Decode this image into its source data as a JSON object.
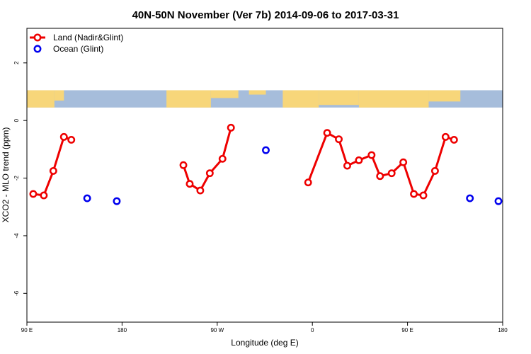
{
  "chart_data": {
    "type": "scatter",
    "title": "40N-50N November (Ver 7b)   2014-09-06 to 2017-03-31",
    "xlabel": "Longitude (deg E)",
    "ylabel": "XCO2 - MLO trend (ppm)",
    "xlim": [
      90,
      540
    ],
    "ylim": [
      -7,
      3.2
    ],
    "xticks": [
      {
        "value": 90,
        "label": "90 E"
      },
      {
        "value": 180,
        "label": "180"
      },
      {
        "value": 270,
        "label": "90 W"
      },
      {
        "value": 360,
        "label": "0"
      },
      {
        "value": 450,
        "label": "90 E"
      },
      {
        "value": 540,
        "label": "180"
      }
    ],
    "yticks": [
      {
        "value": 2,
        "label": "2"
      },
      {
        "value": 0,
        "label": "0"
      },
      {
        "value": -2,
        "label": "-2"
      },
      {
        "value": -4,
        "label": "-4"
      },
      {
        "value": -6,
        "label": "-6"
      }
    ],
    "legend_position": "top-left",
    "grid": false,
    "map_strip": {
      "ylim": [
        0.45,
        1.05
      ],
      "land_color": "#f7d67a",
      "ocean_color": "#a6bddb"
    },
    "series": [
      {
        "name": "Land (Nadir&Glint)",
        "color": "#ee0000",
        "connected": true,
        "segments": [
          [
            [
              96,
              -2.55
            ],
            [
              106,
              -2.6
            ],
            [
              115,
              -1.75
            ],
            [
              125,
              -0.57
            ],
            [
              132,
              -0.67
            ]
          ],
          [
            [
              238,
              -1.55
            ],
            [
              244,
              -2.2
            ],
            [
              254,
              -2.43
            ],
            [
              263,
              -1.83
            ],
            [
              275,
              -1.33
            ],
            [
              283,
              -0.25
            ]
          ],
          [
            [
              356,
              -2.15
            ],
            [
              374,
              -0.43
            ],
            [
              385,
              -0.65
            ],
            [
              393,
              -1.57
            ],
            [
              404,
              -1.38
            ],
            [
              416,
              -1.2
            ],
            [
              424,
              -1.93
            ],
            [
              435,
              -1.83
            ],
            [
              446,
              -1.45
            ],
            [
              456,
              -2.55
            ],
            [
              465,
              -2.6
            ],
            [
              476,
              -1.75
            ],
            [
              486,
              -0.57
            ],
            [
              494,
              -0.67
            ]
          ]
        ]
      },
      {
        "name": "Ocean (Glint)",
        "color": "#0000ee",
        "connected": false,
        "points": [
          [
            147,
            -2.7
          ],
          [
            175,
            -2.8
          ],
          [
            316,
            -1.03
          ],
          [
            509,
            -2.7
          ],
          [
            536,
            -2.8
          ]
        ]
      }
    ]
  }
}
